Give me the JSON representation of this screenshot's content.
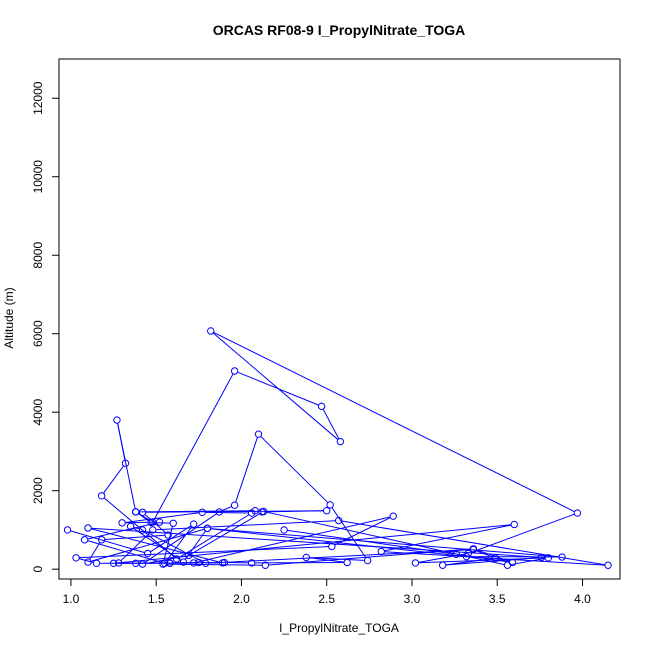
{
  "chart_data": {
    "type": "line",
    "title": "ORCAS RF08-9 I_PropylNitrate_TOGA",
    "xlabel": "I_PropylNitrate_TOGA",
    "ylabel": "Altitude (m)",
    "xlim": [
      0.93,
      4.22
    ],
    "ylim": [
      -250,
      13000
    ],
    "xticks": [
      "1.0",
      "1.5",
      "2.0",
      "2.5",
      "3.0",
      "3.5",
      "4.0"
    ],
    "yticks": [
      "0",
      "2000",
      "4000",
      "6000",
      "8000",
      "10000",
      "12000"
    ],
    "grid": false,
    "series": [
      {
        "line_color": "#0000ff",
        "marker": "open-circle",
        "x": [
          0.98,
          1.45,
          1.72,
          1.55,
          1.08,
          1.52,
          1.3,
          1.77,
          2.06,
          1.62,
          1.18,
          1.32,
          1.27,
          1.38,
          1.48,
          1.96,
          2.47,
          2.58,
          1.82,
          3.97,
          3.33,
          3.02,
          3.8,
          3.56,
          2.13,
          1.69,
          1.42,
          1.87,
          1.96,
          2.1,
          2.52,
          2.74,
          2.38,
          2.62,
          2.06,
          1.9,
          1.58,
          1.15,
          1.03,
          2.53,
          2.89,
          1.72,
          1.38,
          1.28,
          1.48,
          2.57,
          4.15,
          2.82,
          3.6,
          1.25,
          1.58,
          1.75,
          1.89,
          1.1,
          3.76,
          3.18,
          3.49,
          3.36,
          1.79,
          1.42,
          1.35,
          1.66,
          1.8,
          3.32,
          3.88,
          1.8,
          1.1,
          1.18,
          1.57,
          1.42,
          2.5,
          2.12,
          2.08,
          1.38,
          1.47,
          1.6,
          1.54,
          2.14,
          3.36,
          3.59,
          3.26,
          2.25
        ],
        "y": [
          1000,
          400,
          1150,
          150,
          750,
          1200,
          1180,
          1450,
          1430,
          260,
          1870,
          2700,
          3800,
          1460,
          1200,
          5050,
          4150,
          3250,
          6070,
          1430,
          400,
          160,
          290,
          100,
          1470,
          350,
          130,
          1460,
          1630,
          3440,
          1640,
          220,
          300,
          170,
          160,
          170,
          150,
          150,
          290,
          580,
          1350,
          160,
          150,
          160,
          1000,
          1240,
          100,
          450,
          1140,
          150,
          160,
          170,
          160,
          1050,
          300,
          100,
          280,
          500,
          150,
          1000,
          1090,
          180,
          1040,
          320,
          310,
          1040,
          180,
          750,
          870,
          1450,
          1490,
          1460,
          1490,
          1460,
          1190,
          1170,
          130,
          100,
          520,
          170,
          380,
          1000
        ]
      }
    ]
  }
}
